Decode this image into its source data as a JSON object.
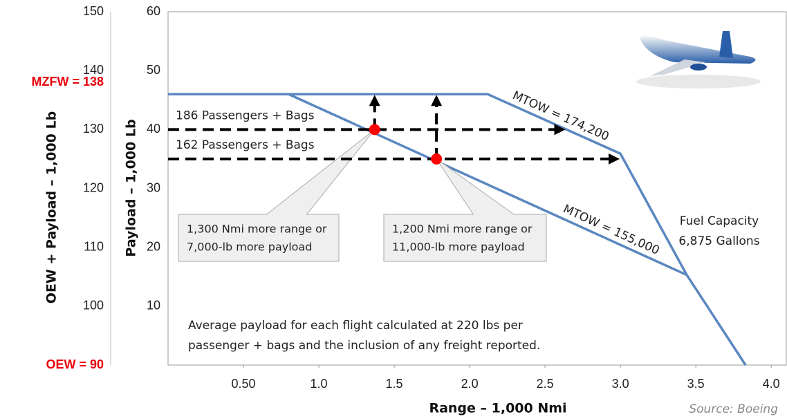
{
  "chart_data": {
    "type": "line",
    "xlabel": "Range – 1,000 Nmi",
    "ylabel": "Payload – 1,000 Lb",
    "y2label": "OEW + Payload – 1,000 Lb",
    "xlim": [
      0,
      4.1
    ],
    "ylim": [
      0,
      60
    ],
    "y2lim": [
      90,
      150
    ],
    "xticks": [
      {
        "value": 0.5,
        "label": "0.50"
      },
      {
        "value": 1,
        "label": "1.0"
      },
      1.5,
      {
        "value": 2,
        "label": "2.0"
      },
      2.5,
      {
        "value": 3,
        "label": "3.0"
      },
      3.5,
      {
        "value": 4,
        "label": "4.0"
      }
    ],
    "yticks": [
      10,
      20,
      30,
      40,
      50,
      60
    ],
    "y2ticks": [
      100,
      110,
      120,
      130,
      140,
      150
    ],
    "y2_markers": [
      {
        "value": 138,
        "label": "MZFW = 138"
      },
      {
        "value": 90,
        "label": "OEW = 90"
      }
    ],
    "marker_color": "#e8000b",
    "series": [
      {
        "name": "MTOW = 174,200",
        "color": "#5b87c0",
        "x": [
          0,
          2.12,
          3.0,
          3.44,
          3.83
        ],
        "values": [
          46,
          46,
          35.9,
          15.3,
          0
        ]
      },
      {
        "name": "MTOW = 155,000",
        "color": "#5b87c0",
        "x": [
          0.8,
          3.44
        ],
        "values": [
          46,
          15.3
        ]
      }
    ],
    "points": [
      {
        "label": "186 Passengers + Bags",
        "x": 1.37,
        "y": 40,
        "arrow_x": 2.62,
        "arrow_y": 45.5,
        "callout": [
          "1,300 Nmi more range or",
          "7,000-lb more payload"
        ]
      },
      {
        "label": "162 Passengers + Bags",
        "x": 1.78,
        "y": 35,
        "arrow_x": 2.98,
        "arrow_y": 45.5,
        "callout": [
          "1,200 Nmi more range or",
          "11,000-lb more payload"
        ]
      }
    ],
    "point_color": "#ff0000",
    "fuel_note": [
      "Fuel Capacity",
      "6,875 Gallons"
    ],
    "note": [
      "Average payload for each flight calculated at 220 lbs per",
      "passenger + bags  and the inclusion of any freight reported."
    ],
    "source": "Source: Boeing"
  }
}
